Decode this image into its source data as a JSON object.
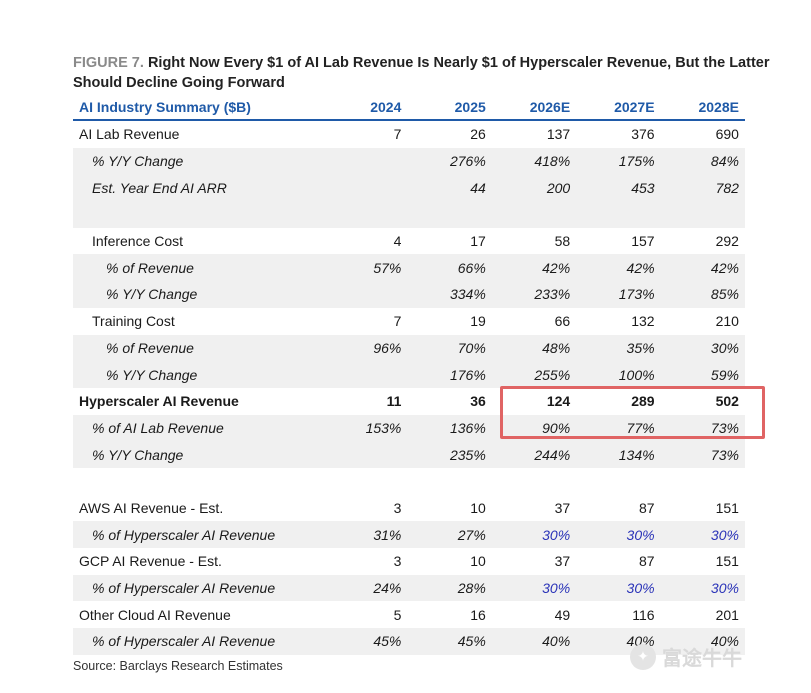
{
  "figure": {
    "label": "FIGURE 7.",
    "title": "Right Now Every $1 of AI Lab Revenue Is Nearly $1 of Hyperscaler Revenue, But the Latter Should Decline Going Forward"
  },
  "table": {
    "header": [
      "AI Industry Summary ($B)",
      "2024",
      "2025",
      "2026E",
      "2027E",
      "2028E"
    ],
    "rows": [
      {
        "label": "AI Lab Revenue",
        "values": [
          "7",
          "26",
          "137",
          "376",
          "690"
        ],
        "style": "normal",
        "indent": 0,
        "shade": false
      },
      {
        "label": "% Y/Y Change",
        "values": [
          "",
          "276%",
          "418%",
          "175%",
          "84%"
        ],
        "style": "italic",
        "indent": 1,
        "shade": true
      },
      {
        "label": "Est. Year End AI ARR",
        "values": [
          "",
          "44",
          "200",
          "453",
          "782"
        ],
        "style": "italic",
        "indent": 1,
        "shade": true
      },
      {
        "blank": true,
        "shade": true
      },
      {
        "label": "Inference Cost",
        "values": [
          "4",
          "17",
          "58",
          "157",
          "292"
        ],
        "style": "normal",
        "indent": 1,
        "shade": false
      },
      {
        "label": "% of Revenue",
        "values": [
          "57%",
          "66%",
          "42%",
          "42%",
          "42%"
        ],
        "style": "italic",
        "indent": 2,
        "shade": true
      },
      {
        "label": "% Y/Y Change",
        "values": [
          "",
          "334%",
          "233%",
          "173%",
          "85%"
        ],
        "style": "italic",
        "indent": 2,
        "shade": true
      },
      {
        "label": "Training Cost",
        "values": [
          "7",
          "19",
          "66",
          "132",
          "210"
        ],
        "style": "normal",
        "indent": 1,
        "shade": false
      },
      {
        "label": "% of Revenue",
        "values": [
          "96%",
          "70%",
          "48%",
          "35%",
          "30%"
        ],
        "style": "italic",
        "indent": 2,
        "shade": true
      },
      {
        "label": "% Y/Y Change",
        "values": [
          "",
          "176%",
          "255%",
          "100%",
          "59%"
        ],
        "style": "italic",
        "indent": 2,
        "shade": true
      },
      {
        "label": "Hyperscaler AI Revenue",
        "values": [
          "11",
          "36",
          "124",
          "289",
          "502"
        ],
        "style": "bold",
        "indent": 0,
        "shade": false
      },
      {
        "label": "% of AI Lab Revenue",
        "values": [
          "153%",
          "136%",
          "90%",
          "77%",
          "73%"
        ],
        "style": "italic",
        "indent": 1,
        "shade": true
      },
      {
        "label": "% Y/Y Change",
        "values": [
          "",
          "235%",
          "244%",
          "134%",
          "73%"
        ],
        "style": "italic",
        "indent": 1,
        "shade": true
      },
      {
        "blank": true,
        "shade": false
      },
      {
        "label": "AWS AI Revenue - Est.",
        "values": [
          "3",
          "10",
          "37",
          "87",
          "151"
        ],
        "style": "normal",
        "indent": 0,
        "shade": false
      },
      {
        "label": "% of Hyperscaler AI Revenue",
        "values": [
          "31%",
          "27%",
          "30%",
          "30%",
          "30%"
        ],
        "style": "italic",
        "indent": 1,
        "shade": true,
        "blue_from": 2
      },
      {
        "label": "GCP AI Revenue - Est.",
        "values": [
          "3",
          "10",
          "37",
          "87",
          "151"
        ],
        "style": "normal",
        "indent": 0,
        "shade": false
      },
      {
        "label": "% of Hyperscaler AI Revenue",
        "values": [
          "24%",
          "28%",
          "30%",
          "30%",
          "30%"
        ],
        "style": "italic",
        "indent": 1,
        "shade": true,
        "blue_from": 2
      },
      {
        "label": "Other Cloud AI Revenue",
        "values": [
          "5",
          "16",
          "49",
          "116",
          "201"
        ],
        "style": "normal",
        "indent": 0,
        "shade": false
      },
      {
        "label": "% of Hyperscaler AI Revenue",
        "values": [
          "45%",
          "45%",
          "40%",
          "40%",
          "40%"
        ],
        "style": "italic",
        "indent": 1,
        "shade": true
      }
    ]
  },
  "source": "Source: Barclays Research Estimates",
  "watermark": "富途牛牛",
  "colors": {
    "header_blue": "#1f5aa8",
    "highlight_red": "#e06464",
    "estimate_blue": "#2a33b8"
  }
}
